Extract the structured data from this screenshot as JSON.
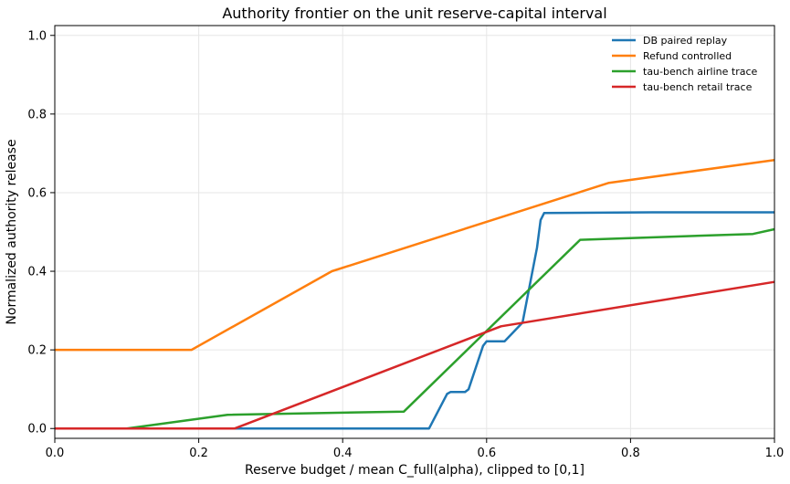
{
  "chart_data": {
    "type": "line",
    "title": "Authority frontier on the unit reserve-capital interval",
    "xlabel": "Reserve budget / mean C_full(alpha), clipped to [0,1]",
    "ylabel": "Normalized authority release",
    "xlim": [
      0,
      1
    ],
    "ylim": [
      -0.025,
      1.025
    ],
    "x_ticks": [
      0.0,
      0.2,
      0.4,
      0.6,
      0.8,
      1.0
    ],
    "x_tick_labels": [
      "0.0",
      "0.2",
      "0.4",
      "0.6",
      "0.8",
      "1.0"
    ],
    "y_ticks": [
      0.0,
      0.2,
      0.4,
      0.6,
      0.8,
      1.0
    ],
    "y_tick_labels": [
      "0.0",
      "0.2",
      "0.4",
      "0.6",
      "0.8",
      "1.0"
    ],
    "grid": true,
    "legend_position": "top-right",
    "series": [
      {
        "name": "DB paired replay",
        "color": "#1f77b4",
        "points": [
          [
            0.0,
            0.0
          ],
          [
            0.52,
            0.0
          ],
          [
            0.545,
            0.088
          ],
          [
            0.55,
            0.093
          ],
          [
            0.57,
            0.093
          ],
          [
            0.575,
            0.1
          ],
          [
            0.595,
            0.21
          ],
          [
            0.6,
            0.222
          ],
          [
            0.625,
            0.222
          ],
          [
            0.645,
            0.26
          ],
          [
            0.65,
            0.27
          ],
          [
            0.67,
            0.46
          ],
          [
            0.675,
            0.53
          ],
          [
            0.68,
            0.548
          ],
          [
            0.83,
            0.55
          ],
          [
            1.0,
            0.55
          ]
        ]
      },
      {
        "name": "Refund controlled",
        "color": "#ff7f0e",
        "points": [
          [
            0.0,
            0.2
          ],
          [
            0.19,
            0.2
          ],
          [
            0.385,
            0.4
          ],
          [
            0.77,
            0.625
          ],
          [
            1.0,
            0.683
          ]
        ]
      },
      {
        "name": "tau-bench airline trace",
        "color": "#2ca02c",
        "points": [
          [
            0.0,
            0.0
          ],
          [
            0.1,
            0.0
          ],
          [
            0.24,
            0.035
          ],
          [
            0.485,
            0.043
          ],
          [
            0.73,
            0.48
          ],
          [
            0.97,
            0.495
          ],
          [
            1.0,
            0.507
          ]
        ]
      },
      {
        "name": "tau-bench retail trace",
        "color": "#d62728",
        "points": [
          [
            0.0,
            0.0
          ],
          [
            0.25,
            0.0
          ],
          [
            0.62,
            0.26
          ],
          [
            1.0,
            0.373
          ]
        ]
      }
    ]
  }
}
